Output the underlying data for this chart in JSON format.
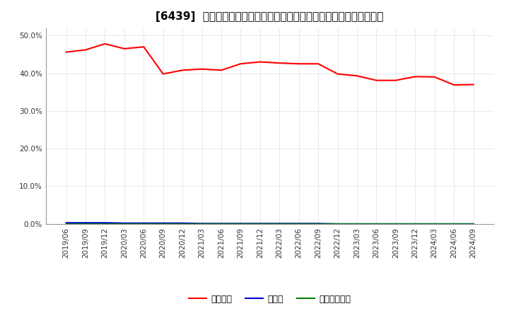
{
  "title": "[6439]  自己資本、のれん、繰延税金資産の総資産に対する比率の推移",
  "x_labels": [
    "2019/06",
    "2019/09",
    "2019/12",
    "2020/03",
    "2020/06",
    "2020/09",
    "2020/12",
    "2021/03",
    "2021/06",
    "2021/09",
    "2021/12",
    "2022/03",
    "2022/06",
    "2022/09",
    "2022/12",
    "2023/03",
    "2023/06",
    "2023/09",
    "2023/12",
    "2024/03",
    "2024/06",
    "2024/09"
  ],
  "equity_ratio": [
    0.456,
    0.462,
    0.478,
    0.465,
    0.47,
    0.398,
    0.408,
    0.411,
    0.408,
    0.425,
    0.43,
    0.427,
    0.425,
    0.425,
    0.398,
    0.393,
    0.381,
    0.381,
    0.391,
    0.39,
    0.369,
    0.37
  ],
  "noren_ratio": [
    0.003,
    0.003,
    0.003,
    0.002,
    0.002,
    0.002,
    0.002,
    0.001,
    0.001,
    0.001,
    0.001,
    0.001,
    0.001,
    0.001,
    0.0,
    0.0,
    0.0,
    0.0,
    0.0,
    0.0,
    0.0,
    0.0
  ],
  "deferred_tax_ratio": [
    0.0,
    0.0,
    0.0,
    0.0,
    0.0,
    0.0,
    0.0,
    0.0,
    0.0,
    0.0,
    0.0,
    0.0,
    0.0,
    0.0,
    0.0,
    0.0,
    0.0,
    0.0,
    0.0,
    0.0,
    0.0,
    0.0
  ],
  "equity_color": "#ff0000",
  "noren_color": "#0000cc",
  "deferred_tax_color": "#008000",
  "bg_color": "#ffffff",
  "plot_bg_color": "#ffffff",
  "grid_color": "#bbbbbb",
  "ylim": [
    0.0,
    0.52
  ],
  "yticks": [
    0.0,
    0.1,
    0.2,
    0.3,
    0.4,
    0.5
  ],
  "legend_labels": [
    "自己資本",
    "のれん",
    "繰延税金資産"
  ],
  "title_fontsize": 11,
  "axis_fontsize": 7.5,
  "legend_fontsize": 9
}
